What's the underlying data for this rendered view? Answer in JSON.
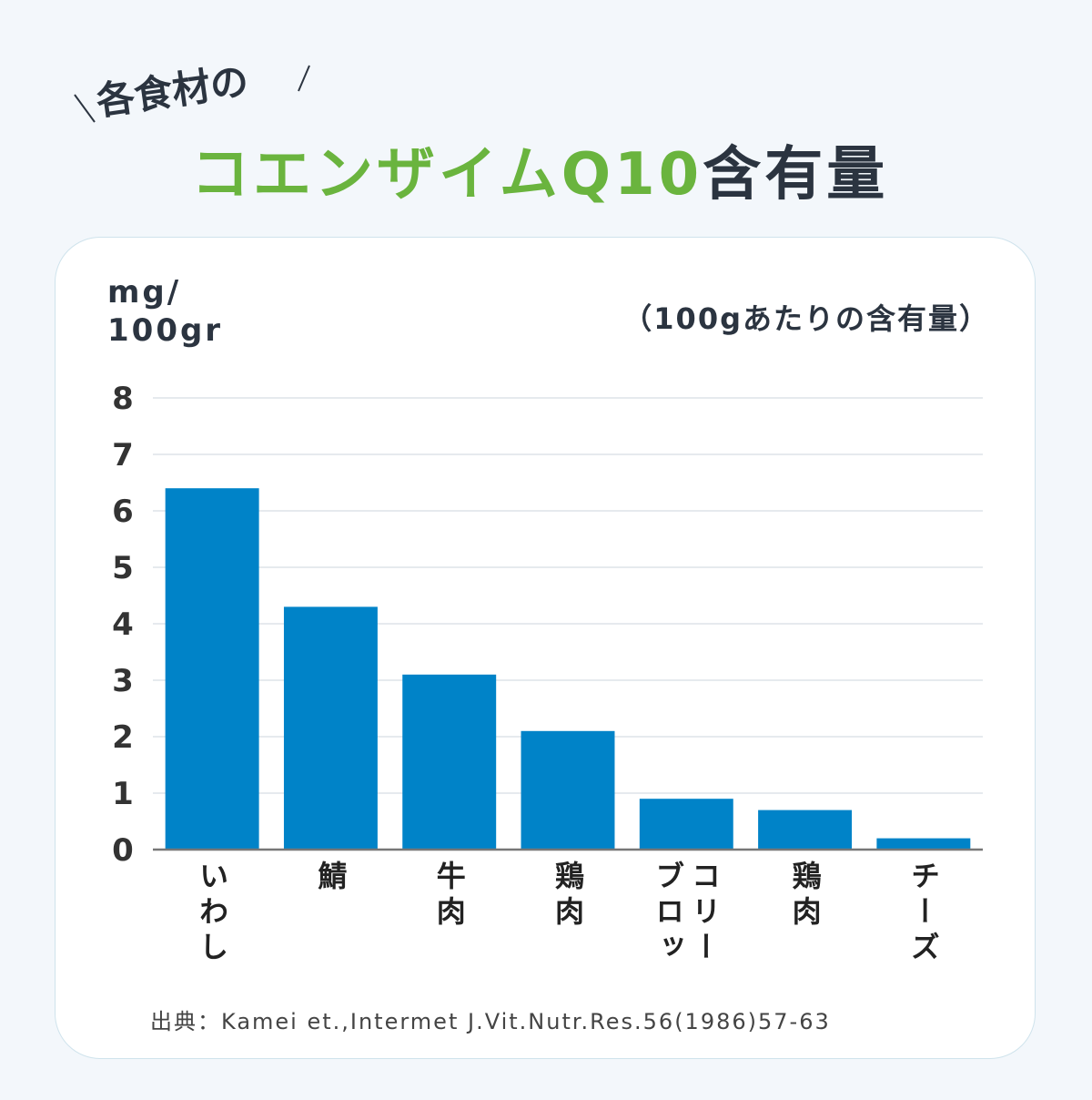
{
  "chart_data": {
    "type": "bar",
    "title_lead": "各食材の",
    "title_highlight": "コエンザイムQ10",
    "title_rest": "含有量",
    "y_label": [
      "mg/",
      "100gr"
    ],
    "subtitle": "（100gあたりの含有量）",
    "categories": [
      "いわし",
      "鯖",
      "牛肉",
      "鶏肉",
      "ブロッコリー",
      "鶏肉",
      "チーズ"
    ],
    "values": [
      6.4,
      4.3,
      3.1,
      2.1,
      0.9,
      0.7,
      0.2
    ],
    "color": "#0083c8",
    "ylim": [
      0,
      8
    ],
    "yticks": [
      0,
      1,
      2,
      3,
      4,
      5,
      6,
      7,
      8
    ],
    "grid": true,
    "source": "出典：Kamei et.,Intermet J.Vit.Nutr.Res.56(1986)57-63"
  }
}
